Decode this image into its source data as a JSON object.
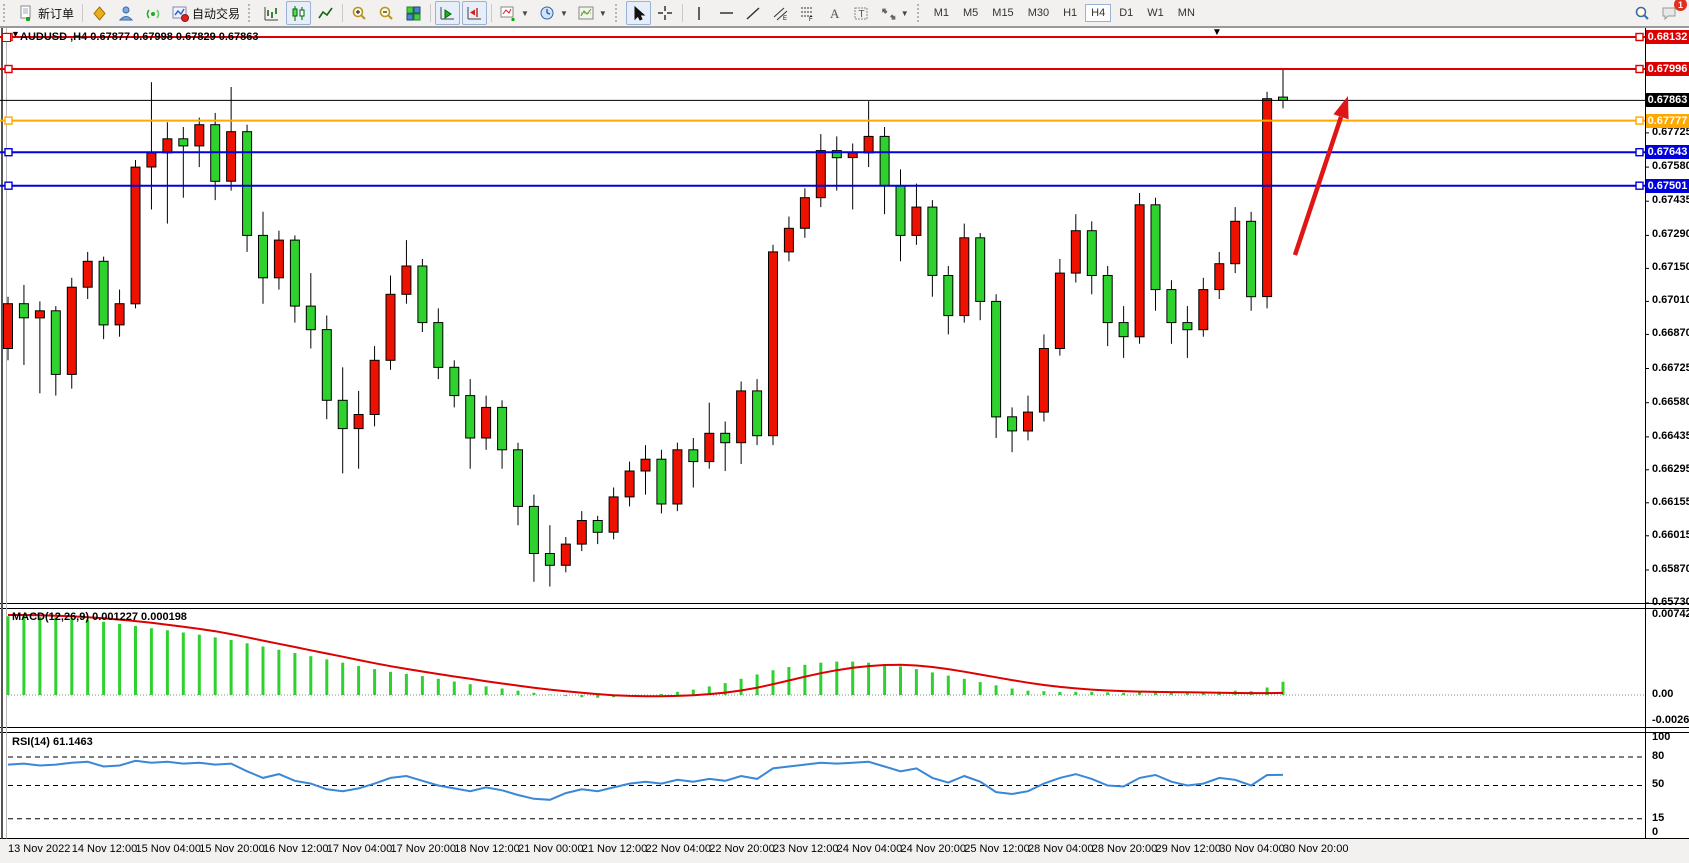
{
  "toolbar": {
    "items": [
      {
        "t": "grip"
      },
      {
        "t": "btn",
        "name": "new-order-button",
        "icon": "new-order",
        "label": "新订单"
      },
      {
        "t": "sep"
      },
      {
        "t": "btn",
        "name": "market-watch-button",
        "icon": "market-watch"
      },
      {
        "t": "btn",
        "name": "navigator-button",
        "icon": "navigator"
      },
      {
        "t": "btn",
        "name": "signals-button",
        "icon": "signals"
      },
      {
        "t": "btn",
        "name": "auto-trading-button",
        "icon": "auto-trading",
        "label": "自动交易"
      },
      {
        "t": "grip"
      },
      {
        "t": "btn",
        "name": "bar-chart-button",
        "icon": "bar-chart"
      },
      {
        "t": "btn",
        "name": "candlestick-button",
        "icon": "candlestick",
        "sel": true
      },
      {
        "t": "btn",
        "name": "line-chart-button",
        "icon": "line-chart"
      },
      {
        "t": "sep"
      },
      {
        "t": "btn",
        "name": "zoom-in-button",
        "icon": "zoom-in"
      },
      {
        "t": "btn",
        "name": "zoom-out-button",
        "icon": "zoom-out"
      },
      {
        "t": "btn",
        "name": "tile-windows-button",
        "icon": "tile-windows"
      },
      {
        "t": "sep"
      },
      {
        "t": "btn",
        "name": "auto-scroll-button",
        "icon": "auto-scroll",
        "sel": true
      },
      {
        "t": "btn",
        "name": "chart-shift-button",
        "icon": "chart-shift",
        "sel": true
      },
      {
        "t": "sep"
      },
      {
        "t": "btn",
        "name": "indicators-button",
        "icon": "indicators",
        "caret": true
      },
      {
        "t": "btn",
        "name": "periods-button",
        "icon": "periods",
        "caret": true
      },
      {
        "t": "btn",
        "name": "templates-button",
        "icon": "templates",
        "caret": true
      },
      {
        "t": "grip"
      },
      {
        "t": "btn",
        "name": "cursor-button",
        "icon": "cursor",
        "sel": true
      },
      {
        "t": "btn",
        "name": "crosshair-button",
        "icon": "crosshair"
      },
      {
        "t": "sep"
      },
      {
        "t": "btn",
        "name": "vertical-line-button",
        "icon": "vertical-line"
      },
      {
        "t": "btn",
        "name": "horizontal-line-button",
        "icon": "horizontal-line"
      },
      {
        "t": "btn",
        "name": "trendline-button",
        "icon": "trendline"
      },
      {
        "t": "btn",
        "name": "equidistant-channel-button",
        "icon": "channel"
      },
      {
        "t": "btn",
        "name": "fibonacci-button",
        "icon": "fibonacci"
      },
      {
        "t": "btn",
        "name": "text-button",
        "icon": "text"
      },
      {
        "t": "btn",
        "name": "text-label-button",
        "icon": "text-label"
      },
      {
        "t": "btn",
        "name": "arrows-tool-button",
        "icon": "arrows",
        "caret": true
      },
      {
        "t": "grip"
      },
      {
        "t": "tf",
        "name": "timeframe-m1",
        "label": "M1"
      },
      {
        "t": "tf",
        "name": "timeframe-m5",
        "label": "M5"
      },
      {
        "t": "tf",
        "name": "timeframe-m15",
        "label": "M15"
      },
      {
        "t": "tf",
        "name": "timeframe-m30",
        "label": "M30"
      },
      {
        "t": "tf",
        "name": "timeframe-h1",
        "label": "H1"
      },
      {
        "t": "tf",
        "name": "timeframe-h4",
        "label": "H4",
        "sel": true
      },
      {
        "t": "tf",
        "name": "timeframe-d1",
        "label": "D1"
      },
      {
        "t": "tf",
        "name": "timeframe-w1",
        "label": "W1"
      },
      {
        "t": "tf",
        "name": "timeframe-mn",
        "label": "MN"
      }
    ],
    "notification_count": "1"
  },
  "chart": {
    "title": "AUDUSD ,H4",
    "ohlc_text": "0.67877 0.67998 0.67829 0.67863",
    "open": "0.67877",
    "high": "0.67998",
    "low": "0.67829",
    "close": "0.67863",
    "levels": [
      {
        "price": 0.68132,
        "label": "0.68132",
        "color": "#dd0000",
        "width": 2
      },
      {
        "price": 0.67996,
        "label": "0.67996",
        "color": "#dd0000",
        "width": 2
      },
      {
        "price": 0.67863,
        "label": "0.67863",
        "color": "#000000",
        "width": 1,
        "current": true
      },
      {
        "price": 0.67777,
        "label": "0.67777",
        "color": "#ffa800",
        "width": 2
      },
      {
        "price": 0.67643,
        "label": "0.67643",
        "color": "#0000dd",
        "width": 2
      },
      {
        "price": 0.67501,
        "label": "0.67501",
        "color": "#0000dd",
        "width": 2
      }
    ],
    "price_ticks": [
      "0.67725",
      "0.67580",
      "0.67435",
      "0.67290",
      "0.67150",
      "0.67010",
      "0.66870",
      "0.66725",
      "0.66580",
      "0.66435",
      "0.66295",
      "0.66155",
      "0.66015",
      "0.65870",
      "0.65730"
    ],
    "time_ticks": [
      "13 Nov 2022",
      "14 Nov 12:00",
      "15 Nov 04:00",
      "15 Nov 20:00",
      "16 Nov 12:00",
      "17 Nov 04:00",
      "17 Nov 20:00",
      "18 Nov 12:00",
      "21 Nov 00:00",
      "21 Nov 12:00",
      "22 Nov 04:00",
      "22 Nov 20:00",
      "23 Nov 12:00",
      "24 Nov 04:00",
      "24 Nov 20:00",
      "25 Nov 12:00",
      "28 Nov 04:00",
      "28 Nov 20:00",
      "29 Nov 12:00",
      "30 Nov 04:00",
      "30 Nov 20:00"
    ]
  },
  "macd": {
    "label": "MACD(12,26,9)",
    "value_main": "0.001227",
    "value_signal": "0.000198",
    "axis": [
      "0.007422",
      "0.00",
      "-0.002651"
    ]
  },
  "rsi": {
    "label": "RSI(14)",
    "value": "61.1463",
    "axis": [
      "100",
      "80",
      "50",
      "15",
      "0"
    ]
  },
  "arrow": {
    "tail": [
      1295,
      255
    ],
    "tip": [
      1348,
      96
    ],
    "color": "#e01515"
  },
  "colors": {
    "candle_up": "#ee1100",
    "candle_down": "#2fd12f",
    "macd_hist": "#2fd12f",
    "macd_signal": "#dd0000",
    "rsi_line": "#3a87d9"
  },
  "chart_data": {
    "type": "candlestick",
    "symbol": "AUDUSD",
    "timeframe": "H4",
    "ohlc": [
      [
        0.6681,
        0.6703,
        0.6676,
        0.67
      ],
      [
        0.67,
        0.6708,
        0.6674,
        0.6694
      ],
      [
        0.6694,
        0.6701,
        0.6662,
        0.6697
      ],
      [
        0.6697,
        0.6699,
        0.6661,
        0.667
      ],
      [
        0.667,
        0.6711,
        0.6664,
        0.6707
      ],
      [
        0.6707,
        0.6722,
        0.6702,
        0.6718
      ],
      [
        0.6718,
        0.672,
        0.6685,
        0.6691
      ],
      [
        0.6691,
        0.6706,
        0.6686,
        0.67
      ],
      [
        0.67,
        0.6761,
        0.6698,
        0.6758
      ],
      [
        0.6758,
        0.6794,
        0.674,
        0.6764
      ],
      [
        0.6764,
        0.6777,
        0.6734,
        0.677
      ],
      [
        0.677,
        0.6775,
        0.6745,
        0.6767
      ],
      [
        0.6767,
        0.6779,
        0.6758,
        0.6776
      ],
      [
        0.6776,
        0.6781,
        0.6744,
        0.6752
      ],
      [
        0.6752,
        0.6792,
        0.6748,
        0.6773
      ],
      [
        0.6773,
        0.6776,
        0.6722,
        0.6729
      ],
      [
        0.6729,
        0.6739,
        0.67,
        0.6711
      ],
      [
        0.6711,
        0.6731,
        0.6706,
        0.6727
      ],
      [
        0.6727,
        0.6729,
        0.6692,
        0.6699
      ],
      [
        0.6699,
        0.6713,
        0.6681,
        0.6689
      ],
      [
        0.6689,
        0.6695,
        0.6651,
        0.6659
      ],
      [
        0.6659,
        0.6673,
        0.6628,
        0.6647
      ],
      [
        0.6647,
        0.6663,
        0.663,
        0.6653
      ],
      [
        0.6653,
        0.6682,
        0.6648,
        0.6676
      ],
      [
        0.6676,
        0.6712,
        0.6672,
        0.6704
      ],
      [
        0.6704,
        0.6727,
        0.67,
        0.6716
      ],
      [
        0.6716,
        0.6719,
        0.6688,
        0.6692
      ],
      [
        0.6692,
        0.6698,
        0.6668,
        0.6673
      ],
      [
        0.6673,
        0.6676,
        0.6656,
        0.6661
      ],
      [
        0.6661,
        0.6668,
        0.663,
        0.6643
      ],
      [
        0.6643,
        0.6661,
        0.6638,
        0.6656
      ],
      [
        0.6656,
        0.6659,
        0.663,
        0.6638
      ],
      [
        0.6638,
        0.6641,
        0.6606,
        0.6614
      ],
      [
        0.6614,
        0.6619,
        0.6582,
        0.6594
      ],
      [
        0.6594,
        0.6606,
        0.658,
        0.6589
      ],
      [
        0.6589,
        0.6601,
        0.6586,
        0.6598
      ],
      [
        0.6598,
        0.6612,
        0.6595,
        0.6608
      ],
      [
        0.6608,
        0.661,
        0.6598,
        0.6603
      ],
      [
        0.6603,
        0.6622,
        0.66,
        0.6618
      ],
      [
        0.6618,
        0.6633,
        0.6614,
        0.6629
      ],
      [
        0.6629,
        0.664,
        0.6619,
        0.6634
      ],
      [
        0.6634,
        0.6638,
        0.6611,
        0.6615
      ],
      [
        0.6615,
        0.6641,
        0.6612,
        0.6638
      ],
      [
        0.6638,
        0.6643,
        0.6622,
        0.6633
      ],
      [
        0.6633,
        0.6658,
        0.663,
        0.6645
      ],
      [
        0.6645,
        0.665,
        0.6629,
        0.6641
      ],
      [
        0.6641,
        0.6667,
        0.6632,
        0.6663
      ],
      [
        0.6663,
        0.6668,
        0.664,
        0.6644
      ],
      [
        0.6644,
        0.6725,
        0.664,
        0.6722
      ],
      [
        0.6722,
        0.6737,
        0.6718,
        0.6732
      ],
      [
        0.6732,
        0.6749,
        0.6728,
        0.6745
      ],
      [
        0.6745,
        0.6772,
        0.6741,
        0.6765
      ],
      [
        0.6765,
        0.6771,
        0.6748,
        0.6762
      ],
      [
        0.6762,
        0.6768,
        0.674,
        0.6764
      ],
      [
        0.6764,
        0.6786,
        0.6758,
        0.6771
      ],
      [
        0.6771,
        0.6775,
        0.6738,
        0.675
      ],
      [
        0.675,
        0.6757,
        0.6718,
        0.6729
      ],
      [
        0.6729,
        0.6751,
        0.6725,
        0.6741
      ],
      [
        0.6741,
        0.6744,
        0.6703,
        0.6712
      ],
      [
        0.6712,
        0.6716,
        0.6687,
        0.6695
      ],
      [
        0.6695,
        0.6734,
        0.6692,
        0.6728
      ],
      [
        0.6728,
        0.673,
        0.6693,
        0.6701
      ],
      [
        0.6701,
        0.6704,
        0.6643,
        0.6652
      ],
      [
        0.6652,
        0.6656,
        0.6637,
        0.6646
      ],
      [
        0.6646,
        0.6661,
        0.6642,
        0.6654
      ],
      [
        0.6654,
        0.6687,
        0.665,
        0.6681
      ],
      [
        0.6681,
        0.6719,
        0.6678,
        0.6713
      ],
      [
        0.6713,
        0.6738,
        0.6709,
        0.6731
      ],
      [
        0.6731,
        0.6735,
        0.6704,
        0.6712
      ],
      [
        0.6712,
        0.6716,
        0.6682,
        0.6692
      ],
      [
        0.6692,
        0.6699,
        0.6677,
        0.6686
      ],
      [
        0.6686,
        0.6747,
        0.6683,
        0.6742
      ],
      [
        0.6742,
        0.6745,
        0.6697,
        0.6706
      ],
      [
        0.6706,
        0.671,
        0.6683,
        0.6692
      ],
      [
        0.6692,
        0.6699,
        0.6677,
        0.6689
      ],
      [
        0.6689,
        0.6711,
        0.6686,
        0.6706
      ],
      [
        0.6706,
        0.6722,
        0.6702,
        0.6717
      ],
      [
        0.6717,
        0.6741,
        0.6713,
        0.6735
      ],
      [
        0.6735,
        0.6739,
        0.6697,
        0.6703
      ],
      [
        0.6703,
        0.679,
        0.6698,
        0.6787
      ],
      [
        0.67877,
        0.67998,
        0.67829,
        0.67863
      ]
    ],
    "macd_hist": [
      0.0073,
      0.0073,
      0.00725,
      0.0072,
      0.0071,
      0.007,
      0.0068,
      0.0066,
      0.0064,
      0.0062,
      0.006,
      0.0058,
      0.0056,
      0.00535,
      0.0051,
      0.0048,
      0.0045,
      0.0042,
      0.0039,
      0.0036,
      0.0033,
      0.003,
      0.0027,
      0.0024,
      0.00215,
      0.00195,
      0.00175,
      0.0015,
      0.00125,
      0.001,
      0.0008,
      0.0006,
      0.0004,
      0.0002,
      5e-05,
      -0.0001,
      -0.0002,
      -0.00025,
      -0.0002,
      -0.0001,
      0.0,
      0.0001,
      0.0003,
      0.0005,
      0.0008,
      0.0011,
      0.0015,
      0.0019,
      0.0023,
      0.0026,
      0.0028,
      0.003,
      0.0031,
      0.0031,
      0.003,
      0.00285,
      0.00265,
      0.0024,
      0.0021,
      0.0018,
      0.0015,
      0.0012,
      0.0009,
      0.0006,
      0.0004,
      0.00035,
      0.0003,
      0.0003,
      0.0003,
      0.00025,
      0.0002,
      0.00025,
      0.0003,
      0.00025,
      0.0002,
      0.00025,
      0.0003,
      0.0004,
      0.00035,
      0.0007,
      0.001227
    ],
    "macd_signal": [
      0.00742,
      0.00742,
      0.0074,
      0.00736,
      0.0073,
      0.00722,
      0.00712,
      0.007,
      0.00686,
      0.0067,
      0.00652,
      0.00633,
      0.00613,
      0.00592,
      0.00565,
      0.00535,
      0.00505,
      0.00475,
      0.00445,
      0.00415,
      0.00385,
      0.00355,
      0.00325,
      0.00295,
      0.00267,
      0.00242,
      0.00218,
      0.00195,
      0.00172,
      0.0015,
      0.00128,
      0.00107,
      0.00087,
      0.00068,
      0.0005,
      0.00034,
      0.0002,
      8e-05,
      -2e-05,
      -8e-05,
      -0.00011,
      -0.00011,
      -8e-05,
      -2e-05,
      8e-05,
      0.00022,
      0.00042,
      0.00068,
      0.001,
      0.00135,
      0.0017,
      0.00202,
      0.0023,
      0.00252,
      0.00268,
      0.00278,
      0.0028,
      0.00274,
      0.0026,
      0.0024,
      0.00216,
      0.0019,
      0.00164,
      0.00138,
      0.00114,
      0.00093,
      0.00075,
      0.00061,
      0.0005,
      0.00042,
      0.00036,
      0.00032,
      0.00029,
      0.00027,
      0.00025,
      0.00023,
      0.00021,
      0.00019,
      0.00018,
      0.00018,
      0.000198
    ],
    "rsi": [
      72,
      73,
      71,
      72,
      74,
      75,
      70,
      71,
      76,
      74,
      75,
      73,
      74,
      72,
      73,
      65,
      58,
      62,
      55,
      52,
      46,
      44,
      47,
      52,
      58,
      60,
      55,
      50,
      47,
      44,
      48,
      45,
      40,
      36,
      35,
      42,
      46,
      44,
      48,
      52,
      54,
      52,
      56,
      54,
      57,
      55,
      60,
      57,
      68,
      70,
      72,
      74,
      73,
      74,
      75,
      70,
      65,
      68,
      58,
      53,
      60,
      54,
      43,
      41,
      44,
      52,
      58,
      62,
      57,
      50,
      49,
      58,
      61,
      54,
      50,
      52,
      58,
      56,
      50,
      61,
      61.15
    ],
    "macd_levels": [
      0
    ],
    "rsi_levels": [
      80,
      50,
      15
    ]
  }
}
